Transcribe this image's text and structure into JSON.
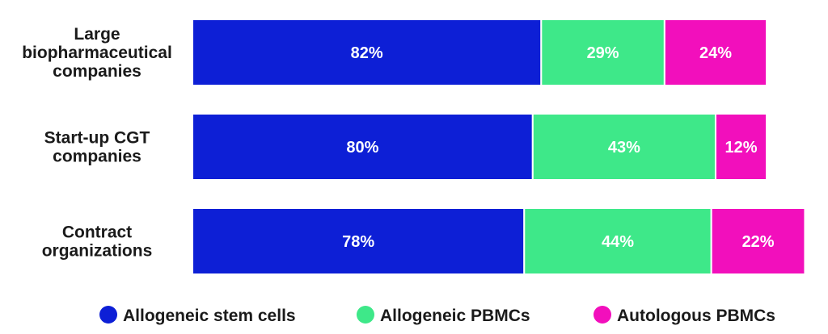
{
  "chart_data": {
    "type": "bar",
    "orientation": "horizontal",
    "stacked": true,
    "title": "",
    "xlabel": "",
    "ylabel": "",
    "grid": false,
    "legend_position": "bottom",
    "categories": [
      [
        "Large",
        "biopharmaceutical",
        "companies"
      ],
      [
        "Start-up CGT",
        "companies"
      ],
      [
        "Contract",
        "organizations"
      ]
    ],
    "series": [
      {
        "name": "Allogeneic stem cells",
        "color": "#0d1fd6",
        "values": [
          82,
          80,
          78
        ],
        "labels": [
          "82%",
          "80%",
          "78%"
        ]
      },
      {
        "name": "Allogeneic PBMCs",
        "color": "#3ee889",
        "values": [
          29,
          43,
          44
        ],
        "labels": [
          "29%",
          "43%",
          "44%"
        ]
      },
      {
        "name": "Autologous PBMCs",
        "color": "#f20fbc",
        "values": [
          24,
          12,
          22
        ],
        "labels": [
          "24%",
          "12%",
          "22%"
        ]
      }
    ]
  }
}
